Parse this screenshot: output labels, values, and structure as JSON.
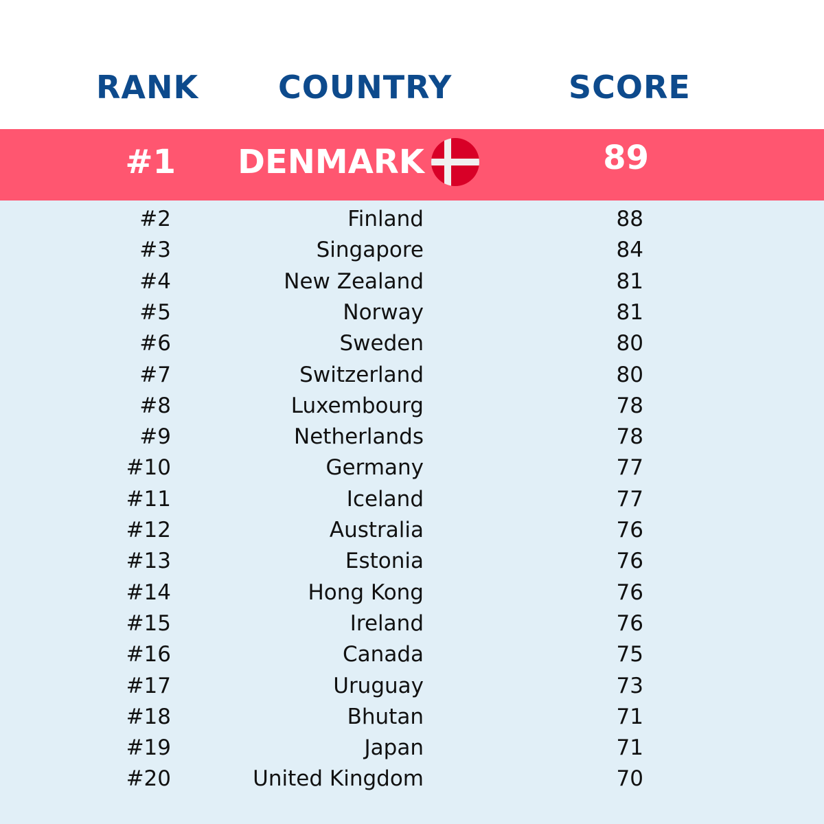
{
  "header": {
    "rank": "RANK",
    "country": "COUNTRY",
    "score": "SCORE"
  },
  "rows": [
    [
      "#1",
      "DENMARK",
      89
    ],
    [
      "#2",
      "Finland",
      88
    ],
    [
      "#3",
      "Singapore",
      84
    ],
    [
      "#4",
      "New Zealand",
      81
    ],
    [
      "#5",
      "Norway",
      81
    ],
    [
      "#6",
      "Sweden",
      80
    ],
    [
      "#7",
      "Switzerland",
      80
    ],
    [
      "#8",
      "Luxembourg",
      78
    ],
    [
      "#9",
      "Netherlands",
      78
    ],
    [
      "#10",
      "Germany",
      77
    ],
    [
      "#11",
      "Iceland",
      77
    ],
    [
      "#12",
      "Australia",
      76
    ],
    [
      "#13",
      "Estonia",
      76
    ],
    [
      "#14",
      "Hong Kong",
      76
    ],
    [
      "#15",
      "Ireland",
      76
    ],
    [
      "#16",
      "Canada",
      75
    ],
    [
      "#17",
      "Uruguay",
      73
    ],
    [
      "#18",
      "Bhutan",
      71
    ],
    [
      "#19",
      "Japan",
      71
    ],
    [
      "#20",
      "United Kingdom",
      70
    ]
  ]
}
